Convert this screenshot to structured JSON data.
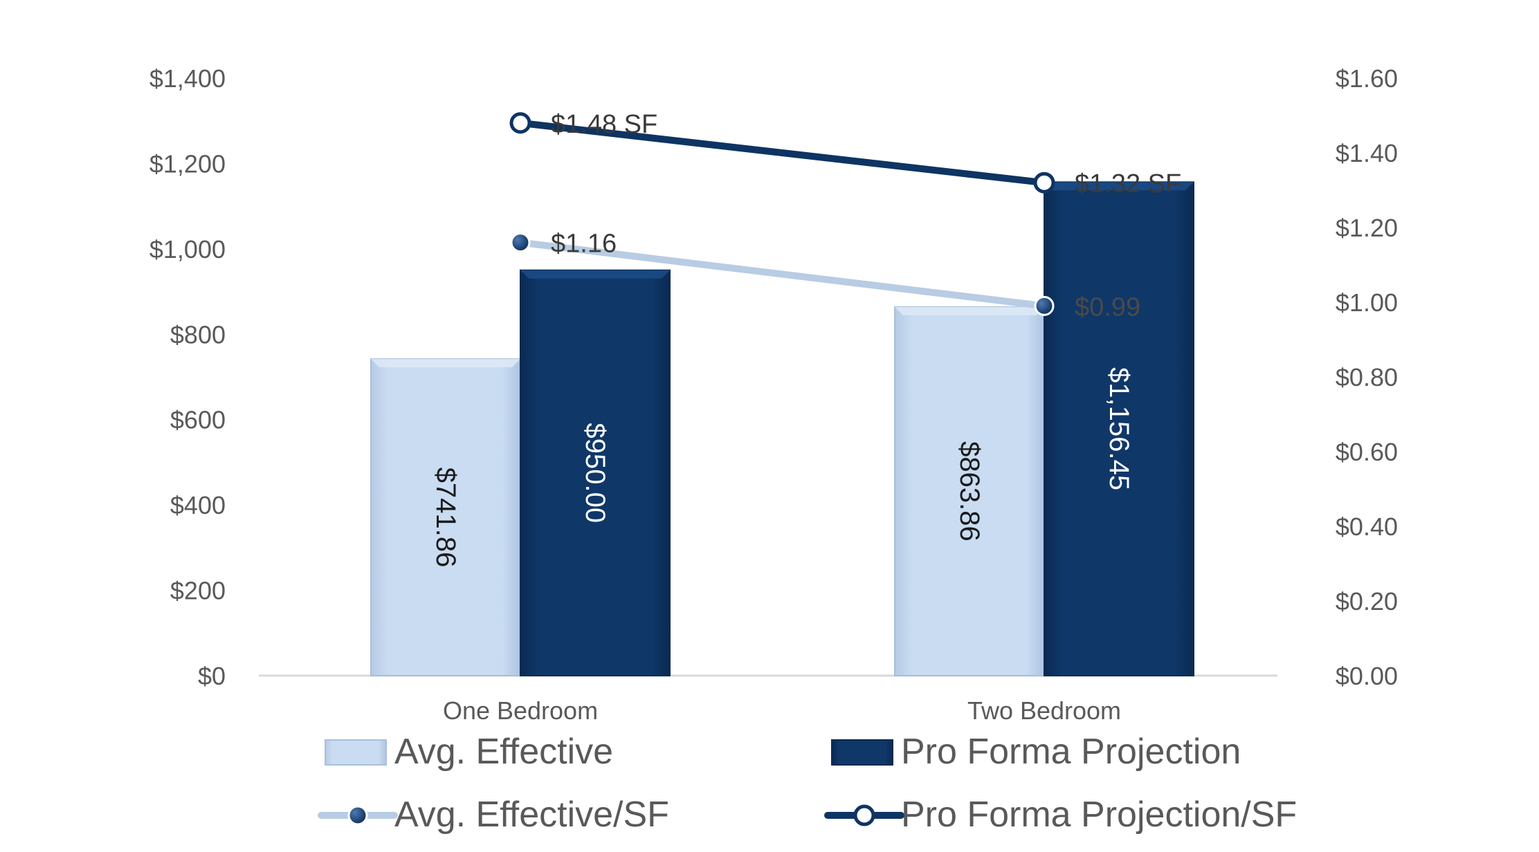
{
  "chart_data": {
    "type": "bar",
    "categories": [
      "One Bedroom",
      "Two Bedroom"
    ],
    "series": [
      {
        "name": "Avg. Effective",
        "type": "bar",
        "axis": "left",
        "values": [
          741.86,
          863.86
        ],
        "labels": [
          "$741.86",
          "$863.86"
        ],
        "color": "#c5d9f1"
      },
      {
        "name": "Pro Forma Projection",
        "type": "bar",
        "axis": "left",
        "values": [
          950.0,
          1156.45
        ],
        "labels": [
          "$950.00",
          "$1,156.45"
        ],
        "color": "#0d3463"
      },
      {
        "name": "Avg. Effective/SF",
        "type": "line",
        "axis": "right",
        "values": [
          1.16,
          0.99
        ],
        "labels": [
          "$1.16",
          "$0.99"
        ],
        "color": "#b8cce4"
      },
      {
        "name": "Pro Forma Projection/SF",
        "type": "line",
        "axis": "right",
        "values": [
          1.48,
          1.32
        ],
        "labels": [
          "$1.48 SF",
          "$1.32 SF"
        ],
        "color": "#0d3463"
      }
    ],
    "left_axis": {
      "ylim": [
        0,
        1400
      ],
      "ticks": [
        "$0",
        "$200",
        "$400",
        "$600",
        "$800",
        "$1,000",
        "$1,200",
        "$1,400"
      ]
    },
    "right_axis": {
      "ylim": [
        0,
        1.6
      ],
      "ticks": [
        "$0.00",
        "$0.20",
        "$0.40",
        "$0.60",
        "$0.80",
        "$1.00",
        "$1.20",
        "$1.40",
        "$1.60"
      ]
    },
    "title": "",
    "xlabel": "",
    "ylabel": "",
    "grid": false,
    "legend": "bottom"
  }
}
